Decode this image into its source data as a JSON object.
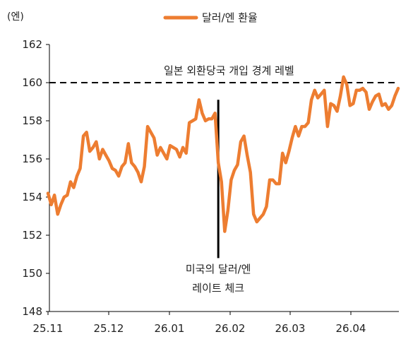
{
  "chart_data": {
    "type": "line",
    "title": "",
    "xlabel": "",
    "ylabel": "",
    "unit_label": "(엔)",
    "ylim": [
      148,
      162
    ],
    "yticks": [
      148,
      150,
      152,
      154,
      156,
      158,
      160,
      162
    ],
    "x_tick_labels": [
      "25.11",
      "25.12",
      "26.01",
      "26.02",
      "26.03",
      "26.04"
    ],
    "grid": false,
    "legend_position": "top-center",
    "colors": {
      "series": "#ED7D31",
      "reference": "#000000"
    },
    "series": [
      {
        "name": "달러/엔 환율",
        "values": [
          154.2,
          153.6,
          154.1,
          153.1,
          153.6,
          154.0,
          154.1,
          154.8,
          154.5,
          155.1,
          155.5,
          157.2,
          157.4,
          156.4,
          156.6,
          156.9,
          156.0,
          156.5,
          156.2,
          155.9,
          155.5,
          155.4,
          155.1,
          155.6,
          155.8,
          156.8,
          155.8,
          155.6,
          155.3,
          154.8,
          155.6,
          157.7,
          157.4,
          157.1,
          156.2,
          156.6,
          156.3,
          156.0,
          156.7,
          156.6,
          156.5,
          156.1,
          156.6,
          156.3,
          157.9,
          158.0,
          158.1,
          159.1,
          158.4,
          158.0,
          158.1,
          158.1,
          158.4,
          155.8,
          154.8,
          152.2,
          153.3,
          154.9,
          155.4,
          155.7,
          156.9,
          157.2,
          156.2,
          155.3,
          153.1,
          152.7,
          152.9,
          153.1,
          153.5,
          154.9,
          154.9,
          154.7,
          154.7,
          156.3,
          155.8,
          156.4,
          157.1,
          157.7,
          157.2,
          157.7,
          157.7,
          157.9,
          159.1,
          159.6,
          159.2,
          159.4,
          159.6,
          157.7,
          158.9,
          158.8,
          158.5,
          159.3,
          160.3,
          159.9,
          158.8,
          158.9,
          159.6,
          159.6,
          159.7,
          159.5,
          158.6,
          159.0,
          159.3,
          159.4,
          158.8,
          158.9,
          158.6,
          158.8,
          159.3,
          159.7
        ]
      }
    ],
    "reference_line": {
      "value": 160,
      "style": "dashed",
      "label": "일본 외환당국 개입 경계 레벨"
    },
    "annotation": {
      "x_index": 53,
      "y_top": 159.1,
      "y_bottom": 150.8,
      "label_lines": [
        "미국의 달러/엔",
        "레이트 체크"
      ]
    }
  }
}
